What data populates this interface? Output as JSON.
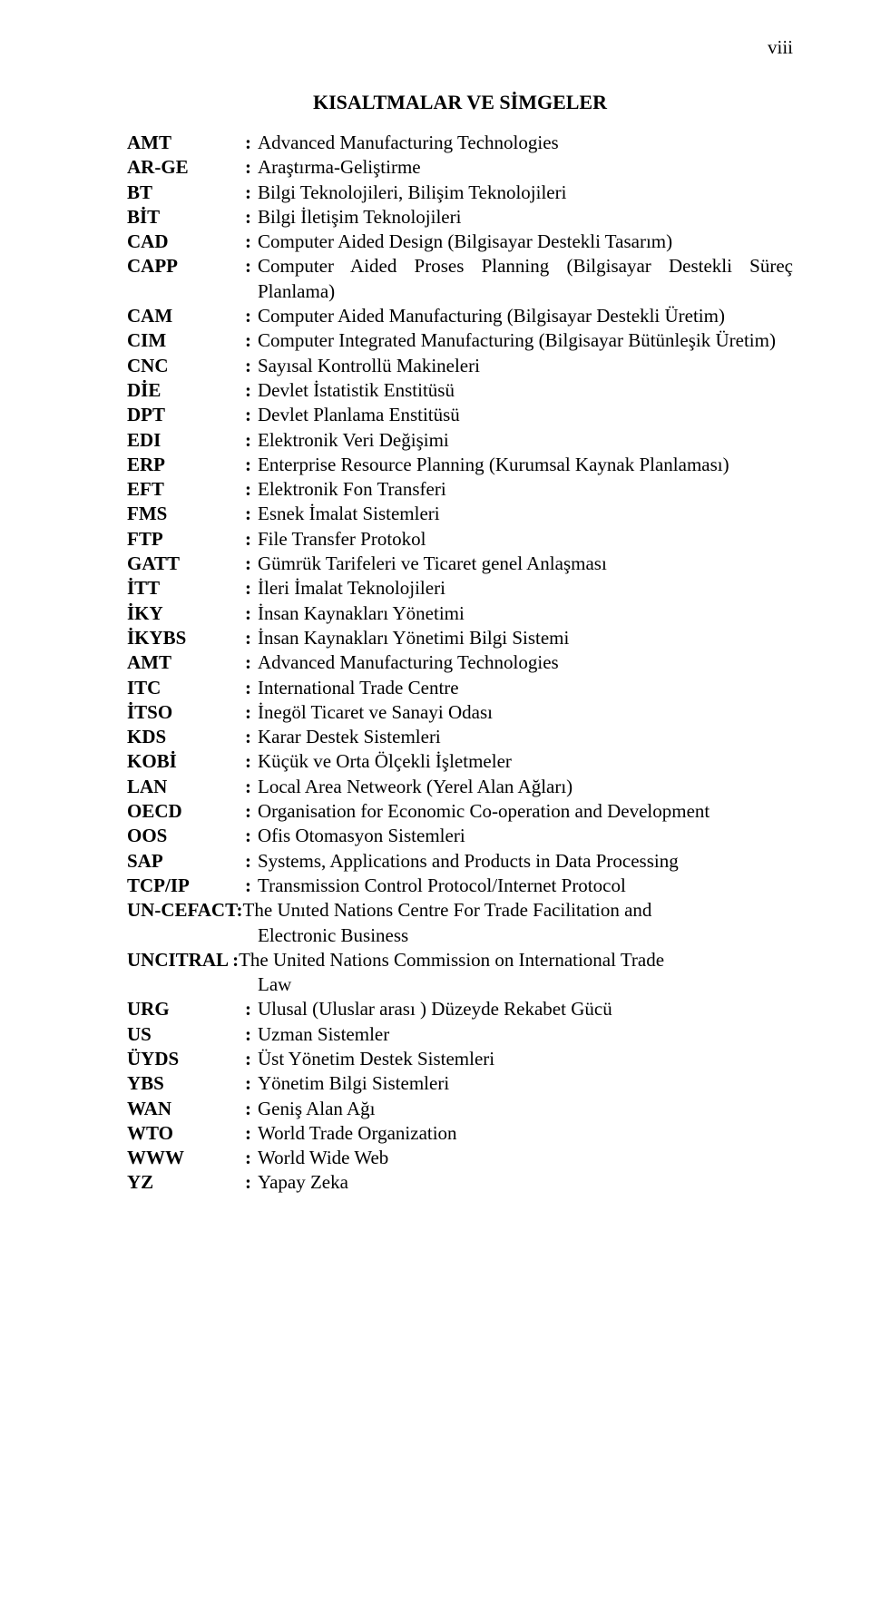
{
  "page_number": "viii",
  "title": "KISALTMALAR VE SİMGELER",
  "abbreviations": [
    {
      "abbr": "AMT",
      "def": "Advanced Manufacturing Technologies"
    },
    {
      "abbr": "AR-GE",
      "def": "Araştırma-Geliştirme"
    },
    {
      "abbr": "BT",
      "def": "Bilgi Teknolojileri, Bilişim Teknolojileri"
    },
    {
      "abbr": "BİT",
      "def": "Bilgi İletişim Teknolojileri"
    },
    {
      "abbr": "CAD",
      "def": "Computer Aided Design (Bilgisayar Destekli Tasarım)"
    },
    {
      "abbr": "CAPP",
      "def": "Computer Aided Proses Planning (Bilgisayar Destekli Süreç Planlama)"
    },
    {
      "abbr": "CAM",
      "def": "Computer Aided Manufacturing (Bilgisayar Destekli Üretim)"
    },
    {
      "abbr": "CIM",
      "def": "Computer Integrated Manufacturing (Bilgisayar Bütünleşik Üretim)"
    },
    {
      "abbr": "CNC",
      "def": "Sayısal Kontrollü Makineleri"
    },
    {
      "abbr": "DİE",
      "def": "Devlet İstatistik Enstitüsü"
    },
    {
      "abbr": "DPT",
      "def": "Devlet Planlama Enstitüsü"
    },
    {
      "abbr": "EDI",
      "def": "Elektronik Veri Değişimi"
    },
    {
      "abbr": "ERP",
      "def": "Enterprise Resource Planning (Kurumsal Kaynak Planlaması)"
    },
    {
      "abbr": "EFT",
      "def": "Elektronik Fon Transferi"
    },
    {
      "abbr": "FMS",
      "def": "Esnek İmalat Sistemleri"
    },
    {
      "abbr": "FTP",
      "def": "File Transfer Protokol"
    },
    {
      "abbr": "GATT",
      "def": "Gümrük Tarifeleri ve Ticaret genel Anlaşması"
    },
    {
      "abbr": "İTT",
      "def": "İleri İmalat Teknolojileri"
    },
    {
      "abbr": "İKY",
      "def": "İnsan Kaynakları Yönetimi"
    },
    {
      "abbr": "İKYBS",
      "def": "İnsan Kaynakları Yönetimi Bilgi Sistemi"
    },
    {
      "abbr": "AMT",
      "def": "Advanced Manufacturing Technologies"
    },
    {
      "abbr": "ITC",
      "def": "International Trade Centre"
    },
    {
      "abbr": "İTSO",
      "def": "İnegöl Ticaret ve Sanayi Odası"
    },
    {
      "abbr": "KDS",
      "def": "Karar Destek Sistemleri"
    },
    {
      "abbr": "KOBİ",
      "def": "Küçük ve Orta Ölçekli İşletmeler"
    },
    {
      "abbr": "LAN",
      "def": "Local Area Netweork (Yerel Alan Ağları)"
    },
    {
      "abbr": "OECD",
      "def": "Organisation for Economic Co-operation and Development"
    },
    {
      "abbr": "OOS",
      "def": "Ofis Otomasyon Sistemleri"
    },
    {
      "abbr": "SAP",
      "def": "Systems, Applications and Products in Data Processing"
    },
    {
      "abbr": "TCP/IP",
      "def": "Transmission Control Protocol/Internet Protocol"
    }
  ],
  "uncefact": {
    "abbr": "UN-CEFACT:",
    "def": " The Unıted Nations Centre For Trade Facilitation and",
    "cont": "Electronic Business"
  },
  "uncitral": {
    "abbr": "UNCITRAL :",
    "def": " The United Nations Commission on International Trade",
    "cont": "Law"
  },
  "abbreviations2": [
    {
      "abbr": "URG",
      "def": "Ulusal (Uluslar arası ) Düzeyde Rekabet Gücü"
    },
    {
      "abbr": "US",
      "def": "Uzman Sistemler"
    },
    {
      "abbr": "ÜYDS",
      "def": "Üst Yönetim Destek Sistemleri"
    },
    {
      "abbr": "YBS",
      "def": "Yönetim Bilgi Sistemleri"
    },
    {
      "abbr": "WAN",
      "def": "Geniş Alan Ağı"
    },
    {
      "abbr": "WTO",
      "def": "World Trade Organization"
    },
    {
      "abbr": "WWW",
      "def": "World Wide Web"
    },
    {
      "abbr": "YZ",
      "def": "Yapay Zeka"
    }
  ]
}
